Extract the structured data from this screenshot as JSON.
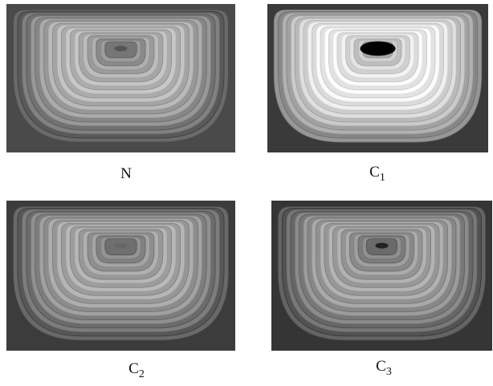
{
  "panels": [
    {
      "label": {
        "main": "N"
      }
    },
    {
      "label": {
        "main": "C",
        "sub": "1"
      }
    },
    {
      "label": {
        "main": "C",
        "sub": "2"
      }
    },
    {
      "label": {
        "main": "C",
        "sub": "3"
      }
    }
  ]
}
